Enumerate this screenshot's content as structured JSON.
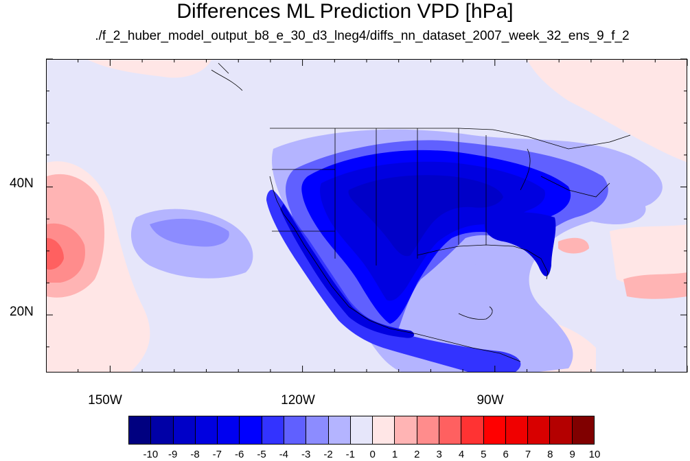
{
  "title": "Differences ML Prediction VPD [hPa]",
  "subtitle": "./f_2_huber_model_output_b8_e_30_d3_lneg4/diffs_nn_dataset_2007_week_32_ens_9_f_2",
  "map": {
    "lon_range": [
      -160,
      -60
    ],
    "lat_range": [
      11,
      60
    ],
    "lat_labels": [
      "40N",
      "20N"
    ],
    "lon_labels": [
      "150W",
      "120W",
      "90W"
    ]
  },
  "colorbar": {
    "labels": [
      "-10",
      "-9",
      "-8",
      "-7",
      "-6",
      "-5",
      "-4",
      "-3",
      "-2",
      "-1",
      "0",
      "1",
      "2",
      "3",
      "4",
      "5",
      "6",
      "7",
      "8",
      "9",
      "10"
    ],
    "colors": [
      "#000080",
      "#0000a6",
      "#0000c8",
      "#0000e0",
      "#0000f0",
      "#0000ff",
      "#3333ff",
      "#6060ff",
      "#8c8cff",
      "#b4b4ff",
      "#e6e6fa",
      "#ffe6e6",
      "#ffb4b4",
      "#ff8c8c",
      "#ff6060",
      "#ff3333",
      "#ff0000",
      "#f00000",
      "#d80000",
      "#b40000",
      "#800000"
    ]
  }
}
